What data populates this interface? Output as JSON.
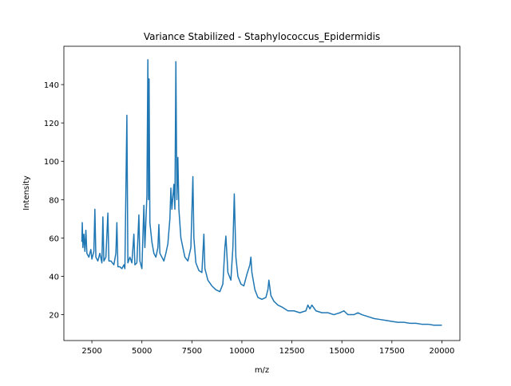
{
  "chart_data": {
    "type": "line",
    "title": "Variance Stabilized - Staphylococcus_Epidermidis",
    "x_label": "m/z",
    "y_label": "Intensity",
    "x": [
      2000,
      2020,
      2050,
      2100,
      2150,
      2200,
      2250,
      2350,
      2450,
      2500,
      2600,
      2650,
      2700,
      2800,
      2900,
      3000,
      3050,
      3100,
      3200,
      3300,
      3350,
      3450,
      3600,
      3700,
      3750,
      3800,
      3900,
      4000,
      4100,
      4150,
      4250,
      4300,
      4400,
      4500,
      4600,
      4650,
      4750,
      4850,
      4900,
      5000,
      5100,
      5150,
      5250,
      5300,
      5330,
      5360,
      5400,
      5500,
      5600,
      5700,
      5800,
      5850,
      5900,
      6000,
      6100,
      6200,
      6300,
      6400,
      6450,
      6500,
      6600,
      6650,
      6700,
      6750,
      6800,
      6850,
      6950,
      7050,
      7150,
      7300,
      7450,
      7550,
      7600,
      7700,
      7850,
      8000,
      8100,
      8150,
      8300,
      8500,
      8700,
      8900,
      9050,
      9150,
      9200,
      9300,
      9450,
      9550,
      9620,
      9700,
      9800,
      9950,
      10100,
      10250,
      10400,
      10450,
      10500,
      10650,
      10800,
      11000,
      11200,
      11300,
      11350,
      11450,
      11600,
      11800,
      12000,
      12300,
      12600,
      12900,
      13200,
      13300,
      13400,
      13500,
      13700,
      14000,
      14300,
      14600,
      14900,
      15100,
      15300,
      15600,
      15800,
      16000,
      16300,
      16600,
      16900,
      17200,
      17500,
      17800,
      18100,
      18400,
      18700,
      19000,
      19300,
      19600,
      20000
    ],
    "series": [
      {
        "color": "#1f77b4",
        "values": [
          58,
          68,
          55,
          62,
          53,
          64,
          52,
          50,
          54,
          49,
          53,
          75,
          50,
          48,
          52,
          47,
          71,
          48,
          50,
          73,
          48,
          48,
          46,
          52,
          68,
          45,
          45,
          44,
          46,
          44,
          124,
          47,
          50,
          47,
          62,
          46,
          47,
          72,
          48,
          44,
          77,
          55,
          82,
          153,
          80,
          143,
          68,
          58,
          52,
          50,
          55,
          67,
          52,
          50,
          48,
          52,
          57,
          70,
          86,
          75,
          88,
          75,
          152,
          80,
          102,
          75,
          60,
          55,
          50,
          48,
          55,
          92,
          60,
          47,
          43,
          42,
          62,
          44,
          38,
          35,
          33,
          32,
          36,
          55,
          61,
          42,
          38,
          55,
          83,
          50,
          40,
          36,
          35,
          41,
          46,
          50,
          42,
          33,
          29,
          28,
          29,
          33,
          38,
          30,
          27,
          25,
          24,
          22,
          22,
          21,
          22,
          25,
          23,
          25,
          22,
          21,
          21,
          20,
          21,
          22,
          20,
          20,
          21,
          20,
          19,
          18,
          17.5,
          17,
          16.5,
          16,
          16,
          15.5,
          15.5,
          15,
          15,
          14.5,
          14.5
        ]
      }
    ],
    "xlim": [
      1100,
      20900
    ],
    "ylim": [
      6.5,
      160
    ],
    "xticks": [
      2500,
      5000,
      7500,
      10000,
      12500,
      15000,
      17500,
      20000
    ],
    "yticks": [
      20,
      40,
      60,
      80,
      100,
      120,
      140
    ]
  }
}
